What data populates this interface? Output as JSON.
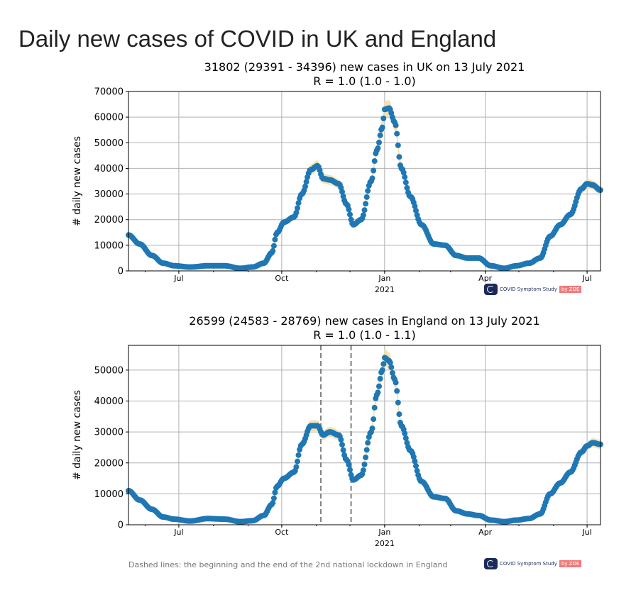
{
  "page": {
    "title": "Daily new cases of COVID in UK and England",
    "footnote": "Dashed lines: the beginning and the end of the 2nd national lockdown in England"
  },
  "logo": {
    "text": "COVID Symptom Study",
    "badge": "by ZOE"
  },
  "colors": {
    "points": "#1f77b4",
    "band": "#f5dfa8",
    "grid": "#b0b0b0",
    "dashed": "#808080"
  },
  "chart_data": [
    {
      "type": "scatter",
      "title_line1": "31802 (29391 - 34396) new cases in UK on 13 July 2021",
      "title_line2": "R = 1.0 (1.0 - 1.0)",
      "xlabel": "",
      "ylabel": "# daily new cases",
      "ylim": [
        0,
        70000
      ],
      "yticks": [
        0,
        10000,
        20000,
        30000,
        40000,
        50000,
        60000,
        70000
      ],
      "yticklabels": [
        "0",
        "10000",
        "20000",
        "30000",
        "40000",
        "50000",
        "60000",
        "70000"
      ],
      "xlim": [
        "2020-05-17",
        "2021-07-13"
      ],
      "xticks": [
        {
          "date": "2020-07-01",
          "label": "Jul",
          "sublabel": ""
        },
        {
          "date": "2020-10-01",
          "label": "Oct",
          "sublabel": ""
        },
        {
          "date": "2021-01-01",
          "label": "Jan",
          "sublabel": "2021"
        },
        {
          "date": "2021-04-01",
          "label": "Apr",
          "sublabel": ""
        },
        {
          "date": "2021-07-01",
          "label": "Jul",
          "sublabel": ""
        }
      ],
      "grid": true,
      "vlines": [],
      "series": [
        {
          "x": [
            "2020-05-17",
            "2020-05-27",
            "2020-06-07",
            "2020-06-17",
            "2020-06-27",
            "2020-07-11",
            "2020-07-27",
            "2020-08-11",
            "2020-08-25",
            "2020-09-05",
            "2020-09-15",
            "2020-09-22",
            "2020-09-27",
            "2020-10-03",
            "2020-10-12",
            "2020-10-19",
            "2020-10-27",
            "2020-11-02",
            "2020-11-07",
            "2020-11-13",
            "2020-11-21",
            "2020-11-28",
            "2020-12-04",
            "2020-12-11",
            "2020-12-20",
            "2020-12-25",
            "2020-12-30",
            "2021-01-01",
            "2021-01-05",
            "2021-01-10",
            "2021-01-16",
            "2021-01-24",
            "2021-02-03",
            "2021-02-14",
            "2021-02-24",
            "2021-03-06",
            "2021-03-16",
            "2021-03-26",
            "2021-04-06",
            "2021-04-18",
            "2021-04-29",
            "2021-05-10",
            "2021-05-20",
            "2021-05-29",
            "2021-06-07",
            "2021-06-16",
            "2021-06-26",
            "2021-07-01",
            "2021-07-06",
            "2021-07-13"
          ],
          "y": [
            14000,
            10500,
            6000,
            3000,
            2000,
            1500,
            2000,
            2000,
            1000,
            1500,
            3000,
            7000,
            15000,
            19000,
            21000,
            30000,
            39500,
            41000,
            36000,
            35500,
            34000,
            26000,
            18000,
            20000,
            35000,
            47000,
            56000,
            63000,
            63500,
            58000,
            40000,
            29000,
            18000,
            10500,
            10000,
            6000,
            5000,
            5000,
            2000,
            1000,
            2000,
            3000,
            5000,
            13500,
            18000,
            22000,
            32000,
            34000,
            33500,
            31500
          ]
        }
      ]
    },
    {
      "type": "scatter",
      "title_line1": "26599 (24583 - 28769) new cases in England on 13 July 2021",
      "title_line2": "R = 1.0 (1.0 - 1.1)",
      "xlabel": "",
      "ylabel": "# daily new cases",
      "ylim": [
        0,
        58000
      ],
      "yticks": [
        0,
        10000,
        20000,
        30000,
        40000,
        50000
      ],
      "yticklabels": [
        "0",
        "10000",
        "20000",
        "30000",
        "40000",
        "50000"
      ],
      "xlim": [
        "2020-05-17",
        "2021-07-13"
      ],
      "xticks": [
        {
          "date": "2020-07-01",
          "label": "Jul",
          "sublabel": ""
        },
        {
          "date": "2020-10-01",
          "label": "Oct",
          "sublabel": ""
        },
        {
          "date": "2021-01-01",
          "label": "Jan",
          "sublabel": "2021"
        },
        {
          "date": "2021-04-01",
          "label": "Apr",
          "sublabel": ""
        },
        {
          "date": "2021-07-01",
          "label": "Jul",
          "sublabel": ""
        }
      ],
      "grid": true,
      "vlines": [
        "2020-11-05",
        "2020-12-02"
      ],
      "series": [
        {
          "x": [
            "2020-05-17",
            "2020-05-27",
            "2020-06-07",
            "2020-06-17",
            "2020-06-27",
            "2020-07-11",
            "2020-07-27",
            "2020-08-11",
            "2020-08-25",
            "2020-09-05",
            "2020-09-15",
            "2020-09-22",
            "2020-09-27",
            "2020-10-03",
            "2020-10-12",
            "2020-10-19",
            "2020-10-27",
            "2020-11-02",
            "2020-11-07",
            "2020-11-13",
            "2020-11-21",
            "2020-11-28",
            "2020-12-04",
            "2020-12-11",
            "2020-12-20",
            "2020-12-25",
            "2020-12-30",
            "2021-01-01",
            "2021-01-05",
            "2021-01-10",
            "2021-01-16",
            "2021-01-24",
            "2021-02-03",
            "2021-02-14",
            "2021-02-24",
            "2021-03-06",
            "2021-03-16",
            "2021-03-26",
            "2021-04-06",
            "2021-04-18",
            "2021-04-29",
            "2021-05-10",
            "2021-05-20",
            "2021-05-29",
            "2021-06-07",
            "2021-06-16",
            "2021-06-26",
            "2021-07-01",
            "2021-07-06",
            "2021-07-13"
          ],
          "y": [
            11000,
            8000,
            5000,
            2500,
            1800,
            1200,
            2000,
            1800,
            1000,
            1300,
            3000,
            6500,
            12500,
            15000,
            17000,
            26000,
            32000,
            32000,
            29000,
            30000,
            29000,
            21000,
            14500,
            16000,
            30000,
            42000,
            50000,
            54000,
            53000,
            47000,
            32000,
            24000,
            14000,
            9000,
            8500,
            4500,
            3500,
            3000,
            1500,
            1000,
            1500,
            2000,
            3500,
            10000,
            13500,
            17000,
            23500,
            25500,
            26500,
            26000
          ]
        }
      ]
    }
  ]
}
